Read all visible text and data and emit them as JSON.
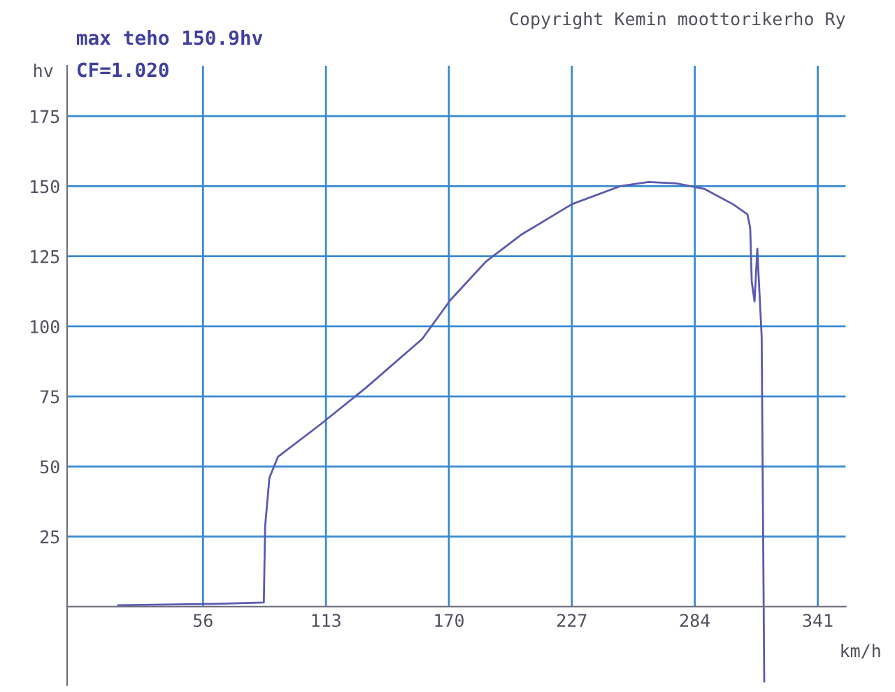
{
  "chart_data": {
    "type": "line",
    "title": "max teho 150.9hv",
    "subtitle": "CF=1.020",
    "xlabel": "km/h",
    "ylabel": "hv",
    "annotations": [
      "Copyright Kemin moottorikerho Ry"
    ],
    "xlim": [
      -7,
      354
    ],
    "ylim": [
      -28,
      193
    ],
    "xticks": [
      56,
      113,
      170,
      227,
      284,
      341
    ],
    "yticks": [
      25,
      50,
      75,
      100,
      125,
      150,
      175
    ],
    "grid": true,
    "line_style": "solid",
    "marker": "none",
    "series": [
      {
        "color": "#5a5ab0",
        "x": [
          16.7,
          62.6,
          84.2,
          84.8,
          86.8,
          90.8,
          110.4,
          131.4,
          157.6,
          170.7,
          187,
          203.5,
          227,
          249.3,
          262.5,
          275.5,
          288.6,
          301.7,
          308.4,
          309.7,
          310.4,
          311.7,
          313,
          313.6,
          315,
          316.2
        ],
        "values": [
          0.5,
          1,
          1.5,
          28.7,
          46,
          53.5,
          65,
          78,
          95.5,
          109.4,
          123,
          132.7,
          143.6,
          150,
          151.5,
          151,
          149,
          143.6,
          140,
          135,
          116,
          108.9,
          127.7,
          118,
          96.5,
          -26.7
        ]
      }
    ]
  }
}
